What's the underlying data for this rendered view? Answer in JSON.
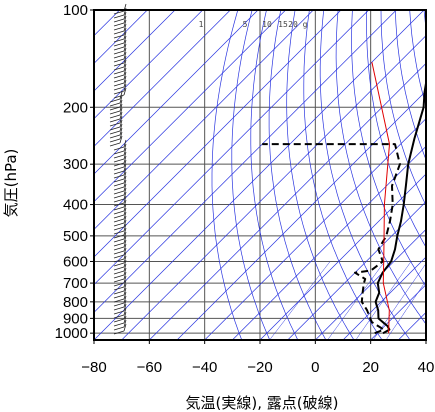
{
  "chart_data": {
    "type": "line",
    "xlabel": "気温(実線), 露点(破線)",
    "ylabel": "気圧(hPa)",
    "xlim": [
      -80,
      40
    ],
    "ylim": [
      1050,
      100
    ],
    "yscale": "log",
    "grid": true,
    "x_ticks": [
      -80,
      -60,
      -40,
      -20,
      0,
      20,
      40
    ],
    "y_ticks": [
      100,
      200,
      300,
      400,
      500,
      600,
      700,
      800,
      900,
      1000
    ],
    "mixing_ratio_labels": [
      "1",
      "5",
      "10",
      "15",
      "20",
      "g"
    ],
    "series": [
      {
        "style": "solid",
        "color": "#000000",
        "points": [
          [
            22,
            1000
          ],
          [
            23,
            975
          ],
          [
            21,
            950
          ],
          [
            18,
            925
          ],
          [
            15,
            900
          ],
          [
            12,
            850
          ],
          [
            8,
            800
          ],
          [
            6,
            750
          ],
          [
            2,
            700
          ],
          [
            0,
            650
          ],
          [
            -1,
            600
          ],
          [
            -4,
            550
          ],
          [
            -8,
            500
          ],
          [
            -12,
            450
          ],
          [
            -17,
            400
          ],
          [
            -23,
            350
          ],
          [
            -30,
            300
          ],
          [
            -37,
            250
          ],
          [
            -45,
            200
          ],
          [
            -50,
            180
          ],
          [
            -55,
            160
          ],
          [
            -58,
            145
          ],
          [
            -59,
            135
          ],
          [
            -62,
            125
          ],
          [
            -64,
            115
          ],
          [
            -65,
            108
          ],
          [
            -66,
            100
          ]
        ]
      },
      {
        "style": "dashed",
        "color": "#000000",
        "points": [
          [
            19,
            1000
          ],
          [
            21,
            975
          ],
          [
            14,
            925
          ],
          [
            12,
            900
          ],
          [
            8,
            850
          ],
          [
            3,
            800
          ],
          [
            0,
            750
          ],
          [
            -3,
            700
          ],
          [
            -4,
            680
          ],
          [
            -10,
            650
          ],
          [
            -5,
            640
          ],
          [
            -4,
            600
          ],
          [
            -10,
            550
          ],
          [
            -12,
            500
          ],
          [
            -16,
            450
          ],
          [
            -21,
            400
          ],
          [
            -28,
            350
          ],
          [
            -33,
            300
          ],
          [
            -42,
            260
          ],
          [
            -90,
            260
          ]
        ]
      },
      {
        "style": "solid",
        "color": "#e00000",
        "points": [
          [
            24,
            1000
          ],
          [
            16,
            850
          ],
          [
            4,
            700
          ],
          [
            -8,
            550
          ],
          [
            -24,
            400
          ],
          [
            -44,
            260
          ],
          [
            -80,
            145
          ]
        ]
      }
    ],
    "wind_column": "wind barbs along left edge, 1000-100 hPa"
  }
}
